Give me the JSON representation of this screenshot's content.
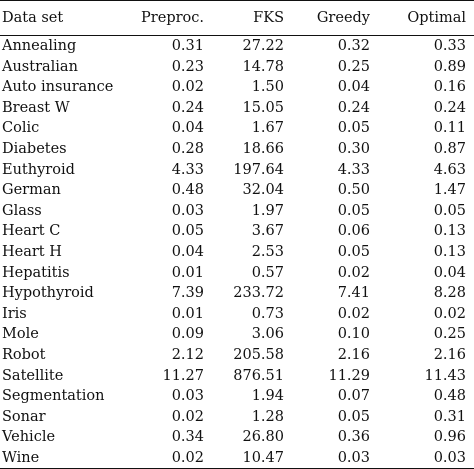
{
  "table": {
    "headers": [
      "Data set",
      "Preproc.",
      "FKS",
      "Greedy",
      "Optimal"
    ],
    "rows": [
      [
        "Annealing",
        "0.31",
        "27.22",
        "0.32",
        "0.33"
      ],
      [
        "Australian",
        "0.23",
        "14.78",
        "0.25",
        "0.89"
      ],
      [
        "Auto insurance",
        "0.02",
        "1.50",
        "0.04",
        "0.16"
      ],
      [
        "Breast W",
        "0.24",
        "15.05",
        "0.24",
        "0.24"
      ],
      [
        "Colic",
        "0.04",
        "1.67",
        "0.05",
        "0.11"
      ],
      [
        "Diabetes",
        "0.28",
        "18.66",
        "0.30",
        "0.87"
      ],
      [
        "Euthyroid",
        "4.33",
        "197.64",
        "4.33",
        "4.63"
      ],
      [
        "German",
        "0.48",
        "32.04",
        "0.50",
        "1.47"
      ],
      [
        "Glass",
        "0.03",
        "1.97",
        "0.05",
        "0.05"
      ],
      [
        "Heart C",
        "0.05",
        "3.67",
        "0.06",
        "0.13"
      ],
      [
        "Heart H",
        "0.04",
        "2.53",
        "0.05",
        "0.13"
      ],
      [
        "Hepatitis",
        "0.01",
        "0.57",
        "0.02",
        "0.04"
      ],
      [
        "Hypothyroid",
        "7.39",
        "233.72",
        "7.41",
        "8.28"
      ],
      [
        "Iris",
        "0.01",
        "0.73",
        "0.02",
        "0.02"
      ],
      [
        "Mole",
        "0.09",
        "3.06",
        "0.10",
        "0.25"
      ],
      [
        "Robot",
        "2.12",
        "205.58",
        "2.16",
        "2.16"
      ],
      [
        "Satellite",
        "11.27",
        "876.51",
        "11.29",
        "11.43"
      ],
      [
        "Segmentation",
        "0.03",
        "1.94",
        "0.07",
        "0.48"
      ],
      [
        "Sonar",
        "0.02",
        "1.28",
        "0.05",
        "0.31"
      ],
      [
        "Vehicle",
        "0.34",
        "26.80",
        "0.36",
        "0.96"
      ],
      [
        "Wine",
        "0.02",
        "10.47",
        "0.03",
        "0.03"
      ]
    ]
  }
}
